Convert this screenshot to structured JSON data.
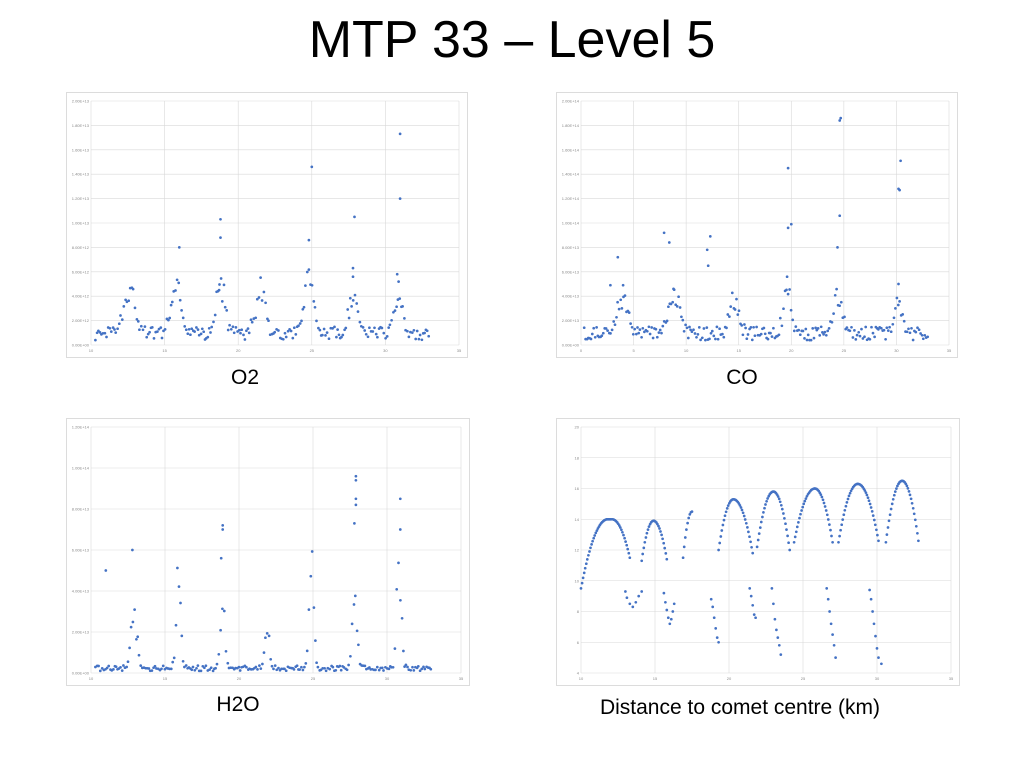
{
  "slide": {
    "title": "MTP 33 – Level 5"
  },
  "captions": {
    "o2": "O2",
    "co": "CO",
    "h2o": "H2O",
    "distance": "Distance to comet centre (km)"
  },
  "style": {
    "marker_color": "#4472C4",
    "grid_color": "#d9d9d9"
  },
  "chart_data": [
    {
      "id": "o2",
      "type": "scatter",
      "title": "",
      "xlabel": "",
      "ylabel": "",
      "xlim": [
        10,
        35
      ],
      "ylim": [
        0,
        20000000000000.0
      ],
      "xticks": [
        10,
        15,
        20,
        25,
        30,
        35
      ],
      "xtick_labels": [
        "10",
        "15",
        "20",
        "25",
        "30",
        "35"
      ],
      "yticks": [
        0,
        2000000000000.0,
        4000000000000.0,
        6000000000000.0,
        8000000000000.0,
        10000000000000.0,
        12000000000000.0,
        14000000000000.0,
        16000000000000.0,
        18000000000000.0,
        20000000000000.0
      ],
      "ytick_labels": [
        "0.00E+00",
        "2.00E+12",
        "4.00E+12",
        "6.00E+12",
        "8.00E+12",
        "1.00E+13",
        "1.20E+13",
        "1.40E+13",
        "1.60E+13",
        "1.80E+13",
        "2.00E+13"
      ],
      "grid": true,
      "peaks": [
        {
          "x": 12.6,
          "y": 4300000000000.0,
          "w": 0.35
        },
        {
          "x": 15.8,
          "y": 4100000000000.0,
          "w": 0.35
        },
        {
          "x": 18.8,
          "y": 5000000000000.0,
          "w": 0.3
        },
        {
          "x": 21.5,
          "y": 4000000000000.0,
          "w": 0.35
        },
        {
          "x": 24.8,
          "y": 5200000000000.0,
          "w": 0.3
        },
        {
          "x": 27.8,
          "y": 3200000000000.0,
          "w": 0.3
        },
        {
          "x": 30.9,
          "y": 3000000000000.0,
          "w": 0.3
        }
      ],
      "points": [
        [
          16.0,
          8000000000000.0
        ],
        [
          18.8,
          10300000000000.0
        ],
        [
          18.8,
          8800000000000.0
        ],
        [
          18.7,
          4500000000000.0
        ],
        [
          24.8,
          8600000000000.0
        ],
        [
          25.0,
          14600000000000.0
        ],
        [
          27.9,
          10500000000000.0
        ],
        [
          27.8,
          6300000000000.0
        ],
        [
          27.8,
          5600000000000.0
        ],
        [
          31.0,
          17300000000000.0
        ],
        [
          31.0,
          12000000000000.0
        ],
        [
          30.8,
          5800000000000.0
        ],
        [
          30.9,
          5200000000000.0
        ]
      ],
      "series": [
        {
          "values_from": "peaks+points"
        }
      ]
    },
    {
      "id": "co",
      "type": "scatter",
      "title": "",
      "xlabel": "",
      "ylabel": "",
      "xlim": [
        0,
        35
      ],
      "ylim": [
        0,
        200000000000000.0
      ],
      "xticks": [
        0,
        5,
        10,
        15,
        20,
        25,
        30,
        35
      ],
      "xtick_labels": [
        "0",
        "5",
        "10",
        "15",
        "20",
        "25",
        "30",
        "35"
      ],
      "yticks": [
        0,
        20000000000000.0,
        40000000000000.0,
        60000000000000.0,
        80000000000000.0,
        100000000000000.0,
        120000000000000.0,
        140000000000000.0,
        160000000000000.0,
        180000000000000.0,
        200000000000000.0
      ],
      "ytick_labels": [
        "0.00E+00",
        "2.00E+13",
        "4.00E+13",
        "6.00E+13",
        "8.00E+13",
        "1.00E+14",
        "1.20E+14",
        "1.40E+14",
        "1.60E+14",
        "1.80E+14",
        "2.00E+14"
      ],
      "grid": true,
      "peaks": [
        {
          "x": 4.0,
          "y": 36000000000000.0,
          "w": 0.5
        },
        {
          "x": 8.9,
          "y": 38000000000000.0,
          "w": 0.5
        },
        {
          "x": 14.6,
          "y": 35000000000000.0,
          "w": 0.4
        },
        {
          "x": 19.6,
          "y": 38000000000000.0,
          "w": 0.4
        },
        {
          "x": 24.4,
          "y": 35000000000000.0,
          "w": 0.4
        },
        {
          "x": 30.2,
          "y": 30000000000000.0,
          "w": 0.4
        }
      ],
      "points": [
        [
          3.5,
          72000000000000.0
        ],
        [
          2.8,
          49000000000000.0
        ],
        [
          4.0,
          49000000000000.0
        ],
        [
          7.9,
          92000000000000.0
        ],
        [
          8.4,
          84000000000000.0
        ],
        [
          8.8,
          46000000000000.0
        ],
        [
          12.3,
          89000000000000.0
        ],
        [
          12.0,
          78000000000000.0
        ],
        [
          12.1,
          65000000000000.0
        ],
        [
          19.7,
          145000000000000.0
        ],
        [
          19.7,
          96000000000000.0
        ],
        [
          20.0,
          99000000000000.0
        ],
        [
          19.6,
          56000000000000.0
        ],
        [
          24.6,
          184000000000000.0
        ],
        [
          24.7,
          186000000000000.0
        ],
        [
          24.6,
          106000000000000.0
        ],
        [
          24.4,
          80000000000000.0
        ],
        [
          30.4,
          151000000000000.0
        ],
        [
          30.2,
          128000000000000.0
        ],
        [
          30.3,
          127000000000000.0
        ],
        [
          30.2,
          50000000000000.0
        ]
      ],
      "series": [
        {
          "values_from": "peaks+points"
        }
      ]
    },
    {
      "id": "h2o",
      "type": "scatter",
      "title": "",
      "xlabel": "",
      "ylabel": "",
      "xlim": [
        10,
        35
      ],
      "ylim": [
        0,
        120000000000000.0
      ],
      "xticks": [
        10,
        15,
        20,
        25,
        30,
        35
      ],
      "xtick_labels": [
        "10",
        "15",
        "20",
        "25",
        "30",
        "35"
      ],
      "yticks": [
        0,
        20000000000000.0,
        40000000000000.0,
        60000000000000.0,
        80000000000000.0,
        100000000000000.0,
        120000000000000.0
      ],
      "ytick_labels": [
        "0.00E+00",
        "2.00E+13",
        "4.00E+13",
        "6.00E+13",
        "8.00E+13",
        "1.00E+14",
        "1.20E+14"
      ],
      "grid": true,
      "peaks": [
        {
          "x": 12.9,
          "y": 33000000000000.0,
          "w": 0.2
        },
        {
          "x": 15.9,
          "y": 50000000000000.0,
          "w": 0.15
        },
        {
          "x": 18.9,
          "y": 35000000000000.0,
          "w": 0.15
        },
        {
          "x": 21.9,
          "y": 25000000000000.0,
          "w": 0.15
        },
        {
          "x": 24.9,
          "y": 55000000000000.0,
          "w": 0.15
        },
        {
          "x": 27.8,
          "y": 48000000000000.0,
          "w": 0.15
        },
        {
          "x": 30.8,
          "y": 65000000000000.0,
          "w": 0.15
        }
      ],
      "points": [
        [
          11.0,
          50000000000000.0
        ],
        [
          12.8,
          60000000000000.0
        ],
        [
          18.9,
          72000000000000.0
        ],
        [
          18.9,
          70000000000000.0
        ],
        [
          18.8,
          56000000000000.0
        ],
        [
          27.9,
          96000000000000.0
        ],
        [
          27.9,
          94000000000000.0
        ],
        [
          27.9,
          85000000000000.0
        ],
        [
          27.9,
          82000000000000.0
        ],
        [
          27.8,
          73000000000000.0
        ],
        [
          30.9,
          85000000000000.0
        ],
        [
          30.9,
          70000000000000.0
        ]
      ],
      "series": [
        {
          "values_from": "peaks+points"
        }
      ]
    },
    {
      "id": "distance",
      "type": "scatter",
      "title": "",
      "xlabel": "",
      "ylabel": "",
      "xlim": [
        10,
        35
      ],
      "ylim": [
        4,
        20
      ],
      "xticks": [
        10,
        15,
        20,
        25,
        30,
        35
      ],
      "xtick_labels": [
        "10",
        "15",
        "20",
        "25",
        "30",
        "35"
      ],
      "yticks": [
        4,
        6,
        8,
        10,
        12,
        14,
        16,
        18,
        20
      ],
      "ytick_labels": [
        "4",
        "6",
        "8",
        "10",
        "12",
        "14",
        "16",
        "18",
        "20"
      ],
      "grid": true,
      "arcs": [
        {
          "x0": 10.0,
          "x1": 12.0,
          "peak_x": 11.8,
          "y_start": 9.5,
          "y_peak": 14.0,
          "y_end": 14.0
        },
        {
          "x0": 11.8,
          "x1": 13.3,
          "peak_x": 12.1,
          "y_start": 14.0,
          "y_peak": 14.0,
          "y_end": 11.5
        },
        {
          "x0": 14.1,
          "x1": 15.8,
          "peak_x": 14.9,
          "y_start": 11.3,
          "y_peak": 13.9,
          "y_end": 11.4
        },
        {
          "x0": 16.9,
          "x1": 17.5,
          "peak_x": 17.5,
          "y_start": 11.5,
          "y_peak": 14.5,
          "y_end": 14.5
        },
        {
          "x0": 19.3,
          "x1": 21.6,
          "peak_x": 20.3,
          "y_start": 12.0,
          "y_peak": 15.3,
          "y_end": 11.8
        },
        {
          "x0": 21.9,
          "x1": 24.1,
          "peak_x": 23.0,
          "y_start": 12.2,
          "y_peak": 15.8,
          "y_end": 12.0
        },
        {
          "x0": 24.4,
          "x1": 27.0,
          "peak_x": 25.8,
          "y_start": 12.5,
          "y_peak": 16.0,
          "y_end": 12.5
        },
        {
          "x0": 27.4,
          "x1": 30.1,
          "peak_x": 28.7,
          "y_start": 12.5,
          "y_peak": 16.3,
          "y_end": 12.6
        },
        {
          "x0": 30.6,
          "x1": 32.8,
          "peak_x": 31.7,
          "y_start": 12.5,
          "y_peak": 16.5,
          "y_end": 12.6
        }
      ],
      "points": [
        [
          13.0,
          9.3
        ],
        [
          13.1,
          8.9
        ],
        [
          13.3,
          8.5
        ],
        [
          13.5,
          8.3
        ],
        [
          13.7,
          8.6
        ],
        [
          13.9,
          9.0
        ],
        [
          14.1,
          9.3
        ],
        [
          15.6,
          9.2
        ],
        [
          15.7,
          8.6
        ],
        [
          15.8,
          8.1
        ],
        [
          15.9,
          7.6
        ],
        [
          16.0,
          7.2
        ],
        [
          16.1,
          7.5
        ],
        [
          16.2,
          8.0
        ],
        [
          16.3,
          8.5
        ],
        [
          18.8,
          8.8
        ],
        [
          18.9,
          8.3
        ],
        [
          19.0,
          7.6
        ],
        [
          19.1,
          6.9
        ],
        [
          19.2,
          6.3
        ],
        [
          19.3,
          6.0
        ],
        [
          21.4,
          9.5
        ],
        [
          21.5,
          9.0
        ],
        [
          21.6,
          8.4
        ],
        [
          21.7,
          7.8
        ],
        [
          21.8,
          7.6
        ],
        [
          22.9,
          9.5
        ],
        [
          23.0,
          8.5
        ],
        [
          23.1,
          7.5
        ],
        [
          23.2,
          6.8
        ],
        [
          23.3,
          6.3
        ],
        [
          23.4,
          5.8
        ],
        [
          23.5,
          5.2
        ],
        [
          26.6,
          9.5
        ],
        [
          26.7,
          8.8
        ],
        [
          26.8,
          8.0
        ],
        [
          26.9,
          7.2
        ],
        [
          27.0,
          6.5
        ],
        [
          27.1,
          5.8
        ],
        [
          27.2,
          5.0
        ],
        [
          29.5,
          9.4
        ],
        [
          29.6,
          8.8
        ],
        [
          29.7,
          8.0
        ],
        [
          29.8,
          7.2
        ],
        [
          29.9,
          6.4
        ],
        [
          30.0,
          5.6
        ],
        [
          30.1,
          5.0
        ],
        [
          30.3,
          4.6
        ]
      ],
      "series": [
        {
          "values_from": "arcs+points"
        }
      ]
    }
  ]
}
